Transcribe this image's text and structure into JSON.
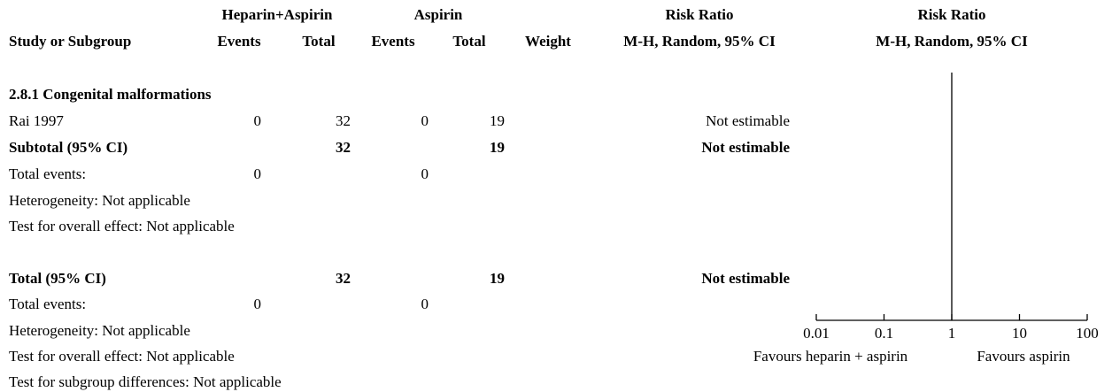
{
  "header": {
    "group1": "Heparin+Aspirin",
    "group2": "Aspirin",
    "rr_left_top": "Risk Ratio",
    "rr_left_bottom": "M-H, Random, 95% CI",
    "rr_right_top": "Risk Ratio",
    "rr_right_bottom": "M-H, Random, 95% CI",
    "study": "Study or Subgroup",
    "events1": "Events",
    "total1": "Total",
    "events2": "Events",
    "total2": "Total",
    "weight": "Weight"
  },
  "subgroup": {
    "title": "2.8.1 Congenital malformations",
    "study_row": {
      "study": "Rai 1997",
      "events1": "0",
      "total1": "32",
      "events2": "0",
      "total2": "19",
      "rr": "Not estimable"
    },
    "subtotal": {
      "label": "Subtotal (95% CI)",
      "total1": "32",
      "total2": "19",
      "rr": "Not estimable"
    },
    "total_events": {
      "label": "Total events:",
      "events1": "0",
      "events2": "0"
    },
    "heterogeneity": "Heterogeneity: Not applicable",
    "overall_effect": "Test for overall effect: Not applicable"
  },
  "overall": {
    "total": {
      "label": "Total (95% CI)",
      "total1": "32",
      "total2": "19",
      "rr": "Not estimable"
    },
    "total_events": {
      "label": "Total events:",
      "events1": "0",
      "events2": "0"
    },
    "heterogeneity": "Heterogeneity: Not applicable",
    "overall_effect": "Test for overall effect: Not applicable",
    "subgroup_diff": "Test for subgroup differences: Not applicable"
  },
  "chart_data": {
    "type": "forest",
    "scale": "log",
    "xlim": [
      0.01,
      100
    ],
    "null_line": 1,
    "ticks": [
      {
        "value": 0.01,
        "label": "0.01"
      },
      {
        "value": 0.1,
        "label": "0.1"
      },
      {
        "value": 1,
        "label": "1"
      },
      {
        "value": 10,
        "label": "10"
      },
      {
        "value": 100,
        "label": "100"
      }
    ],
    "favours_left": "Favours heparin + aspirin",
    "favours_right": "Favours aspirin",
    "points": []
  }
}
